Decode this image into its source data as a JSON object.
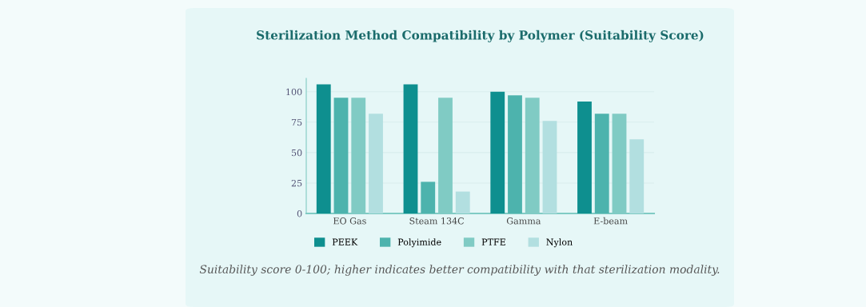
{
  "chart_data": {
    "type": "bar",
    "title": "Sterilization Method Compatibility by Polymer (Suitability Score)",
    "categories": [
      "EO Gas",
      "Steam 134C",
      "Gamma",
      "E-beam"
    ],
    "series": [
      {
        "name": "PEEK",
        "color": "#0e8f8f",
        "values": [
          106,
          106,
          100,
          92
        ]
      },
      {
        "name": "Polyimide",
        "color": "#4db3ad",
        "values": [
          95,
          26,
          97,
          82
        ]
      },
      {
        "name": "PTFE",
        "color": "#80cbc4",
        "values": [
          95,
          95,
          95,
          82
        ]
      },
      {
        "name": "Nylon",
        "color": "#b2dfe0",
        "values": [
          82,
          18,
          76,
          61
        ]
      }
    ],
    "ylim": [
      0,
      111
    ],
    "yticks": [
      0,
      25,
      50,
      75,
      100
    ],
    "grid": "y",
    "legend": "bottom left",
    "annotations": [
      "Suitability score 0-100; higher indicates better compatibility with that sterilization modality."
    ]
  }
}
